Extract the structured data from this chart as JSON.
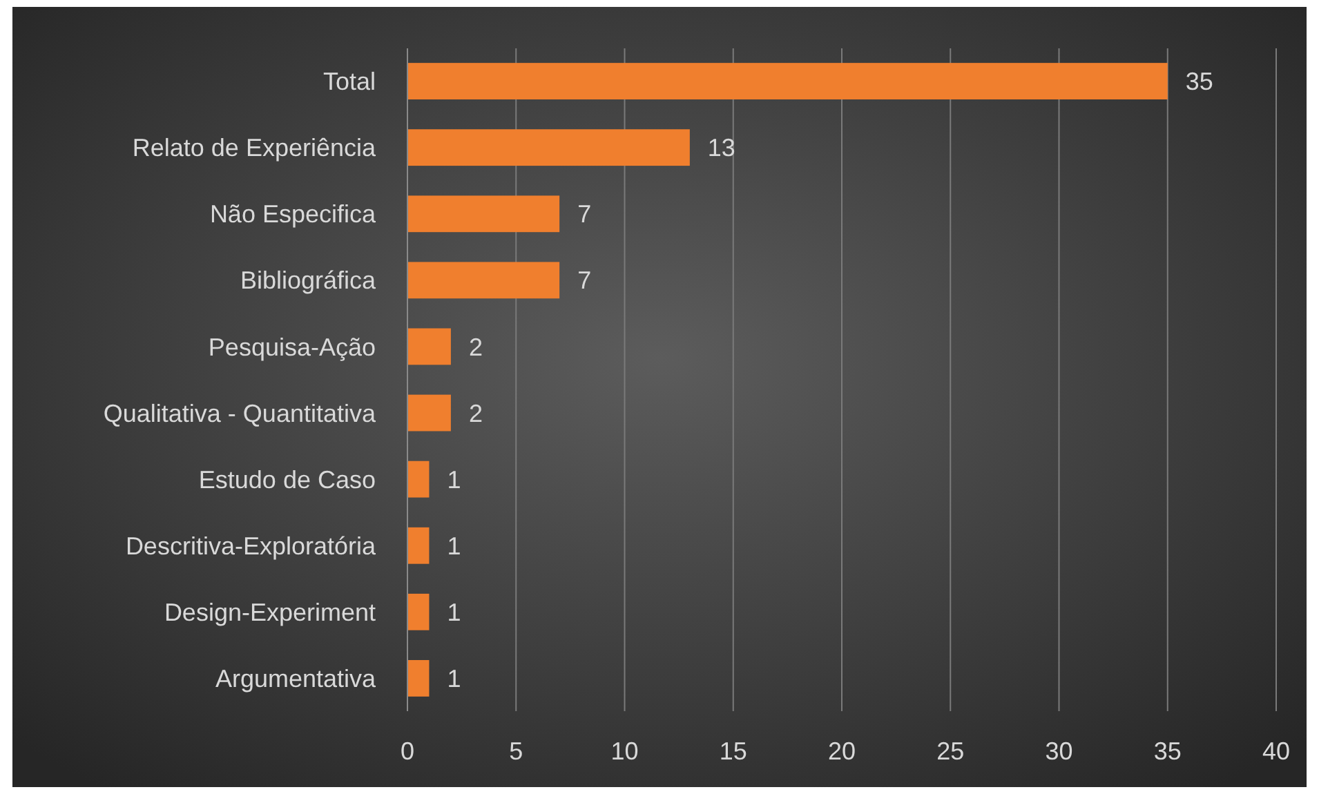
{
  "chart_data": {
    "type": "bar",
    "orientation": "horizontal",
    "categories": [
      "Total",
      "Relato de Experiência",
      "Não Especifica",
      "Bibliográfica",
      "Pesquisa-Ação",
      "Qualitativa - Quantitativa",
      "Estudo de Caso",
      "Descritiva-Exploratória",
      "Design-Experiment",
      "Argumentativa"
    ],
    "values": [
      35,
      13,
      7,
      7,
      2,
      2,
      1,
      1,
      1,
      1
    ],
    "color": "#f07f2e",
    "xlim": [
      0,
      40
    ],
    "xticks": [
      0,
      5,
      10,
      15,
      20,
      25,
      30,
      35,
      40
    ],
    "grid": "x",
    "data_labels": true
  }
}
